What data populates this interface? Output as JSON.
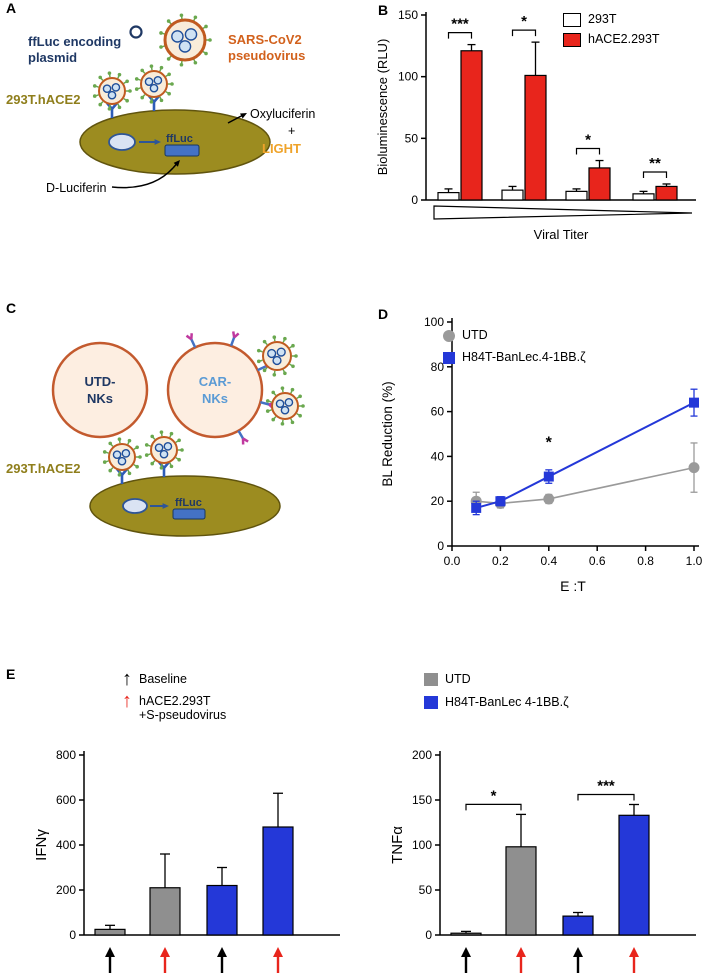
{
  "colors": {
    "red": "#e8251c",
    "blue": "#2438d8",
    "gray": "#8f8f8f",
    "orange": "#d2611c",
    "olive": "#8f7e1b",
    "navy": "#1f3864",
    "peach": "#fdeee1",
    "light_blue": "#5b9bd5",
    "gold": "#efa32a",
    "green": "#6aa84f",
    "cell_olive": "#9c8c20"
  },
  "icons": {
    "up_arrow": "↑"
  },
  "panels": {
    "a": {
      "label": "A",
      "plasmid_line1": "ffLuc encoding",
      "plasmid_line2": "plasmid",
      "virus_line1": "SARS-CoV2",
      "virus_line2": "pseudovirus",
      "cell_label": "293T.hACE2",
      "ffluc_label": "ffLuc",
      "product_label": "Oxyluciferin",
      "plus": "+",
      "light_label": "LIGHT",
      "substrate_label": "D-Luciferin"
    },
    "b": {
      "label": "B"
    },
    "c": {
      "label": "C",
      "utd_line1": "UTD-",
      "utd_line2": "NKs",
      "car_line1": "CAR-",
      "car_line2": "NKs",
      "cell_label": "293T.hACE2",
      "ffluc_label": "ffLuc"
    },
    "d": {
      "label": "D"
    },
    "e": {
      "label": "E",
      "legend_baseline": "Baseline",
      "legend_stim_line1": "hACE2.293T",
      "legend_stim_line2": "+S-pseudovirus"
    }
  },
  "chart_data": [
    {
      "id": "panel-b",
      "type": "bar",
      "ylabel": "Bioluminescence (RLU)",
      "xlabel": "Viral Titer",
      "ylim": [
        0,
        150
      ],
      "yticks": [
        0,
        50,
        100,
        150
      ],
      "x_axis_style": "decreasing-titer-wedge",
      "legend_position": "top-right",
      "series": [
        {
          "name": "293T",
          "color": "#ffffff",
          "values": [
            6,
            8,
            7,
            5
          ],
          "errors": [
            3,
            3,
            2,
            2
          ]
        },
        {
          "name": "hACE2.293T",
          "color": "#e8251c",
          "values": [
            121,
            101,
            26,
            11
          ],
          "errors": [
            5,
            27,
            6,
            2
          ]
        }
      ],
      "significance": [
        "***",
        "*",
        "*",
        "**"
      ]
    },
    {
      "id": "panel-d",
      "type": "line",
      "ylabel": "BL Reduction (%)",
      "xlabel": "E :T",
      "ylim": [
        0,
        100
      ],
      "xlim": [
        0,
        1.0
      ],
      "yticks": [
        0,
        20,
        40,
        60,
        80,
        100
      ],
      "xticks": [
        "0.0",
        "0.2",
        "0.4",
        "0.6",
        "0.8",
        "1.0"
      ],
      "legend_position": "top-left",
      "series": [
        {
          "name": "UTD",
          "color": "#9a9a9a",
          "marker": "circle",
          "x": [
            0.1,
            0.2,
            0.4,
            1.0
          ],
          "y": [
            20,
            19,
            21,
            35
          ],
          "errors": [
            4,
            2,
            2,
            11
          ]
        },
        {
          "name": "H84T-BanLec.4-1BB.ζ",
          "color": "#2438d8",
          "marker": "square",
          "x": [
            0.1,
            0.2,
            0.4,
            1.0
          ],
          "y": [
            17,
            20,
            31,
            64
          ],
          "errors": [
            3,
            2,
            3,
            6
          ]
        }
      ],
      "annotations": [
        {
          "text": "*",
          "x": 0.4,
          "y": 44
        }
      ]
    },
    {
      "id": "panel-e-ifng",
      "type": "bar",
      "ylabel": "IFNγ",
      "ylim": [
        0,
        800
      ],
      "yticks": [
        0,
        200,
        400,
        600,
        800
      ],
      "values": [
        25,
        210,
        220,
        480
      ],
      "errors": [
        18,
        150,
        80,
        150
      ],
      "colors": [
        "#8f8f8f",
        "#8f8f8f",
        "#2438d8",
        "#2438d8"
      ],
      "x_arrows": [
        "black",
        "red",
        "black",
        "red"
      ]
    },
    {
      "id": "panel-e-tnfa",
      "type": "bar",
      "ylabel": "TNFα",
      "ylim": [
        0,
        200
      ],
      "yticks": [
        0,
        50,
        100,
        150,
        200
      ],
      "values": [
        2,
        98,
        21,
        133
      ],
      "errors": [
        2,
        36,
        4,
        12
      ],
      "colors": [
        "#8f8f8f",
        "#8f8f8f",
        "#2438d8",
        "#2438d8"
      ],
      "x_arrows": [
        "black",
        "red",
        "black",
        "red"
      ],
      "significance": [
        {
          "text": "*",
          "pair": [
            0,
            1
          ]
        },
        {
          "text": "***",
          "pair": [
            2,
            3
          ]
        }
      ],
      "legend": [
        "UTD",
        "H84T-BanLec 4-1BB.ζ"
      ]
    }
  ]
}
